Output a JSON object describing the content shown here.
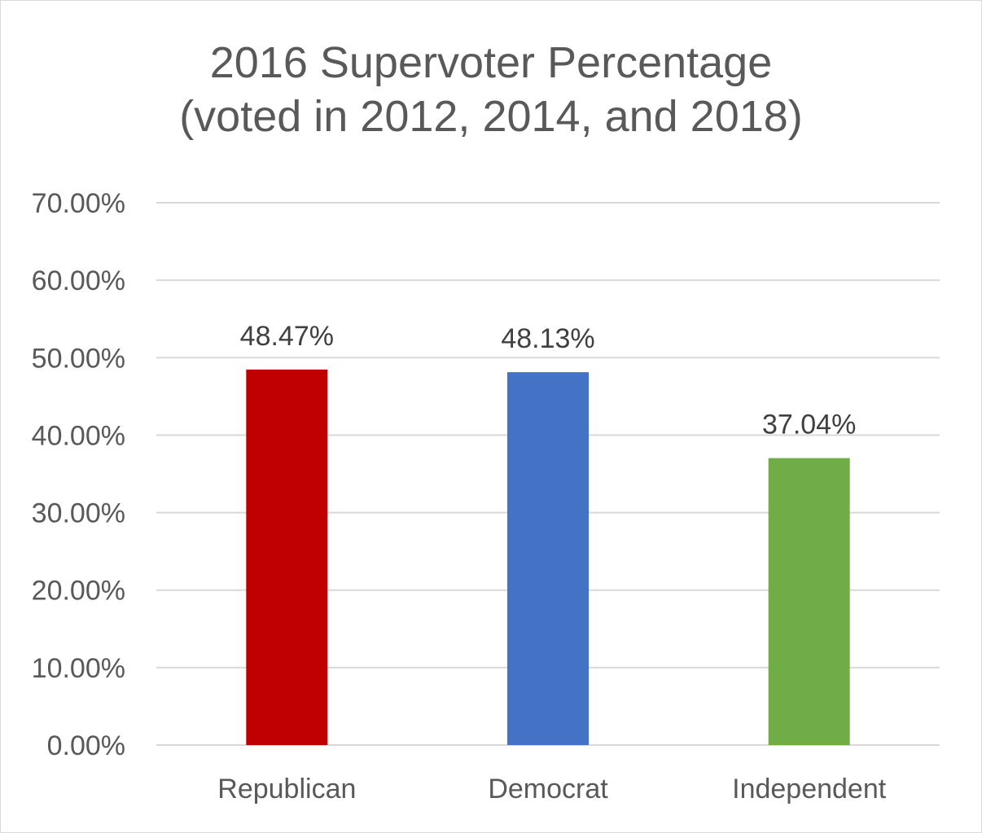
{
  "chart_data": {
    "type": "bar",
    "title": "2016 Supervoter Percentage",
    "subtitle": "(voted in 2012, 2014, and 2018)",
    "categories": [
      "Republican",
      "Democrat",
      "Independent"
    ],
    "values": [
      48.47,
      48.13,
      37.04
    ],
    "data_labels": [
      "48.47%",
      "48.13%",
      "37.04%"
    ],
    "bar_colors": [
      "#c00000",
      "#4472c4",
      "#70ad47"
    ],
    "ylim": [
      0,
      70
    ],
    "yticks": [
      0,
      10,
      20,
      30,
      40,
      50,
      60,
      70
    ],
    "ytick_labels": [
      "0.00%",
      "10.00%",
      "20.00%",
      "30.00%",
      "40.00%",
      "50.00%",
      "60.00%",
      "70.00%"
    ],
    "xlabel": "",
    "ylabel": "",
    "grid": true,
    "legend": "none"
  }
}
